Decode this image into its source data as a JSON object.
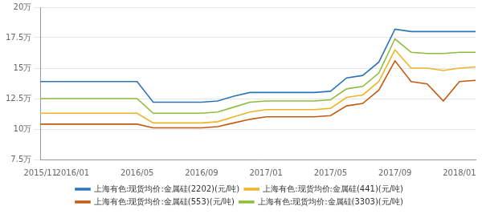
{
  "chart_data": {
    "type": "line",
    "categories": [
      "2015/11",
      null,
      "2016/01",
      null,
      null,
      null,
      "2016/05",
      null,
      null,
      null,
      "2016/09",
      null,
      null,
      null,
      "2017/01",
      null,
      null,
      null,
      "2017/05",
      null,
      null,
      null,
      "2017/09",
      null,
      null,
      null,
      "2018/01",
      null
    ],
    "series": [
      {
        "name": "上海有色:现货均价:金属硅(2202)(元/吨)",
        "color": "#2e75b6",
        "values": [
          139000,
          139000,
          139000,
          139000,
          139000,
          139000,
          139000,
          122000,
          122000,
          122000,
          122000,
          123000,
          127000,
          130000,
          130000,
          130000,
          130000,
          130000,
          131000,
          142000,
          144000,
          155000,
          182000,
          180000,
          180000,
          180000,
          180000,
          180000
        ]
      },
      {
        "name": "上海有色:现货均价:金属硅(441)(元/吨)",
        "color": "#f0b429",
        "values": [
          113000,
          113000,
          113000,
          113000,
          113000,
          113000,
          113000,
          105000,
          105000,
          105000,
          105000,
          106000,
          110000,
          114000,
          116000,
          116000,
          116000,
          116000,
          117000,
          126000,
          128000,
          139000,
          165000,
          150000,
          150000,
          148000,
          150000,
          151000
        ]
      },
      {
        "name": "上海有色:现货均价:金属硅(553)(元/吨)",
        "color": "#c55a11",
        "values": [
          104000,
          104000,
          104000,
          104000,
          104000,
          104000,
          104000,
          101000,
          101000,
          101000,
          101000,
          102000,
          105000,
          108000,
          110000,
          110000,
          110000,
          110000,
          111000,
          119000,
          121000,
          132000,
          156000,
          139000,
          137000,
          123000,
          139000,
          140000
        ]
      },
      {
        "name": "上海有色:现货均价:金属硅(3303)(元/吨)",
        "color": "#8fbc3c",
        "values": [
          125000,
          125000,
          125000,
          125000,
          125000,
          125000,
          125000,
          113000,
          113000,
          113000,
          113000,
          114000,
          118000,
          122000,
          123000,
          123000,
          123000,
          123000,
          124000,
          133000,
          135000,
          146000,
          174000,
          163000,
          162000,
          162000,
          163000,
          163000
        ]
      }
    ],
    "ylim": [
      75000,
      200000
    ],
    "yticks": [
      {
        "value": 75000,
        "label": "7.5万"
      },
      {
        "value": 100000,
        "label": "10万"
      },
      {
        "value": 125000,
        "label": "12.5万"
      },
      {
        "value": 150000,
        "label": "15万"
      },
      {
        "value": 175000,
        "label": "17.5万"
      },
      {
        "value": 200000,
        "label": "20万"
      }
    ],
    "grid": true,
    "legend": "bottom"
  }
}
